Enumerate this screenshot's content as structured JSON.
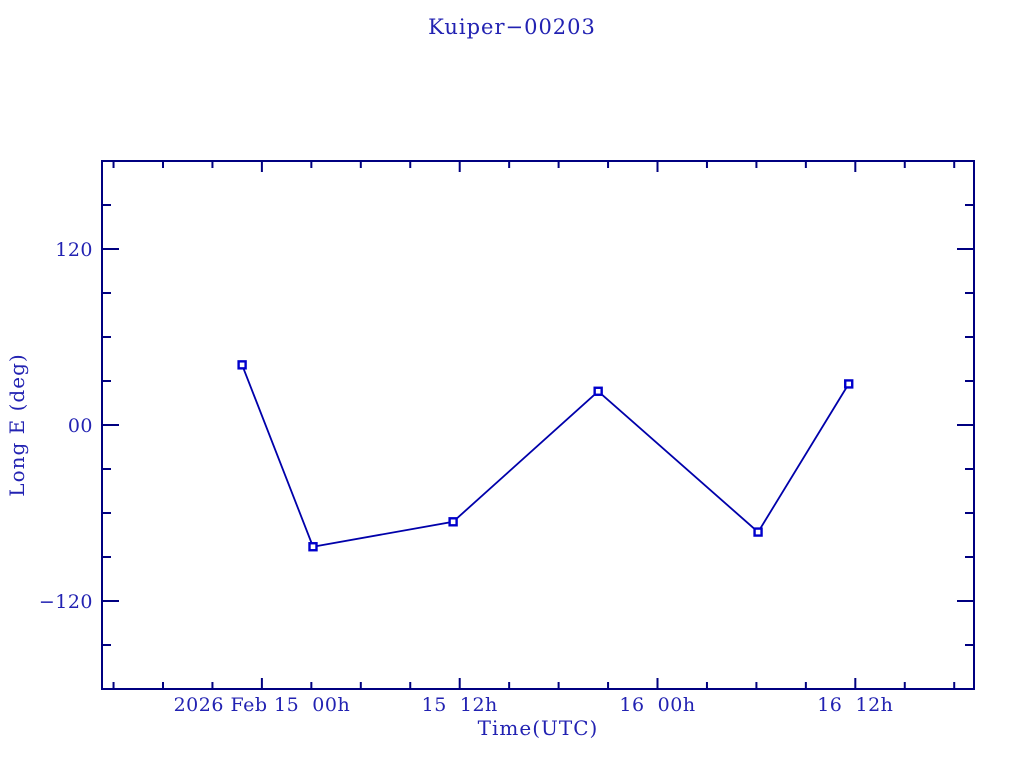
{
  "chart_data": {
    "type": "line",
    "title": "Kuiper−00203",
    "x_axis": {
      "label": "Time(UTC)",
      "units": "hours from 2026 Feb 15 00h UTC",
      "range_hours": [
        -9.7,
        43.2
      ],
      "major_ticks": [
        {
          "hours": 0,
          "label": "2026 Feb 15  00h"
        },
        {
          "hours": 12,
          "label": "15  12h"
        },
        {
          "hours": 24,
          "label": "16  00h"
        },
        {
          "hours": 36,
          "label": "16  12h"
        }
      ],
      "minor_tick_step_hours": 3
    },
    "y_axis": {
      "label": "Long E (deg)",
      "range": [
        -180,
        180
      ],
      "major_ticks": [
        {
          "value": 120,
          "label": "120"
        },
        {
          "value": 0,
          "label": "00"
        },
        {
          "value": -120,
          "label": "−120"
        }
      ],
      "minor_tick_step": 30
    },
    "series": [
      {
        "name": "Long E",
        "marker": "open-square",
        "points": [
          {
            "hours": -1.2,
            "long_e_deg": 41,
            "utc_estimate": "Feb 14 ~22:48"
          },
          {
            "hours": 3.1,
            "long_e_deg": -83,
            "utc_estimate": "Feb 15 ~03:06"
          },
          {
            "hours": 11.6,
            "long_e_deg": -66,
            "utc_estimate": "Feb 15 ~11:36"
          },
          {
            "hours": 20.4,
            "long_e_deg": 23,
            "utc_estimate": "Feb 15 ~20:24"
          },
          {
            "hours": 30.1,
            "long_e_deg": -73,
            "utc_estimate": "Feb 16 ~06:06"
          },
          {
            "hours": 35.6,
            "long_e_deg": 28,
            "utc_estimate": "Feb 16 ~11:36"
          }
        ]
      }
    ],
    "grid": false,
    "legend": "none",
    "colors": {
      "background": "#ffffff",
      "frame": "#000080",
      "text": "#2222b2",
      "line": "#0000aa",
      "marker": "#0000cc"
    }
  }
}
